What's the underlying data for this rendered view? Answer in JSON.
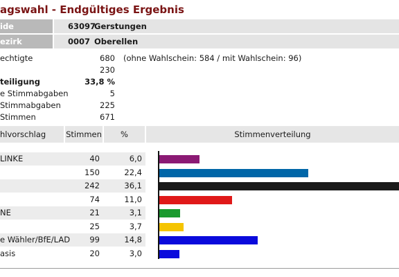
{
  "page": {
    "title": "agswahl - Endgültiges Ergebnis"
  },
  "header": {
    "gemeinde": {
      "label": "ide",
      "number": "63097",
      "name": "Gerstungen"
    },
    "bezirk": {
      "label": "ezirk",
      "number": "0007",
      "name": "Oberellen"
    }
  },
  "stats": [
    {
      "label": "echtigte",
      "value": "680",
      "note": "(ohne Wahlschein: 584 / mit Wahlschein: 96)",
      "bold": false
    },
    {
      "label": "",
      "value": "230",
      "note": "",
      "bold": false
    },
    {
      "label": "teiligung",
      "value": "33,8 %",
      "note": "",
      "bold": true
    },
    {
      "label": "e Stimmabgaben",
      "value": "5",
      "note": "",
      "bold": false
    },
    {
      "label": "Stimmabgaben",
      "value": "225",
      "note": "",
      "bold": false
    },
    {
      "label": "Stimmen",
      "value": "671",
      "note": "",
      "bold": false
    }
  ],
  "table": {
    "headers": {
      "party": "hlvorschlag",
      "votes": "Stimmen",
      "pct": "%",
      "distribution": "Stimmenverteilung"
    }
  },
  "chart_data": {
    "type": "bar",
    "orientation": "horizontal",
    "title": "Stimmenverteilung",
    "categories": [
      "LINKE",
      "",
      "",
      "",
      "NE",
      "",
      "e Wähler/BfE/LAD",
      "asis"
    ],
    "votes": [
      40,
      150,
      242,
      74,
      21,
      25,
      99,
      20
    ],
    "values": [
      6.0,
      22.4,
      36.1,
      11.0,
      3.1,
      3.7,
      14.8,
      3.0
    ],
    "display_pct": [
      "6,0",
      "22,4",
      "36,1",
      "11,0",
      "3,1",
      "3,7",
      "14,8",
      "3,0"
    ],
    "colors": [
      "#8b1a74",
      "#0066a8",
      "#1a1a1a",
      "#e01919",
      "#1a9a2e",
      "#f5c400",
      "#0a0adc",
      "#0a0adc"
    ],
    "xlim": [
      0,
      36.1
    ]
  }
}
